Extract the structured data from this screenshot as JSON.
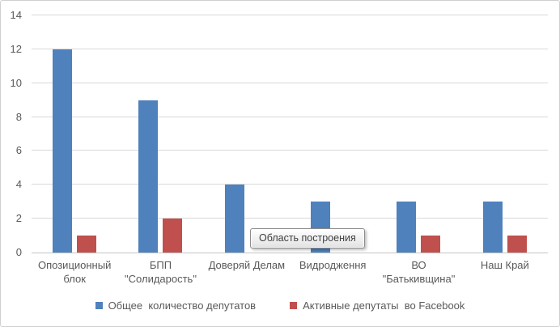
{
  "tooltip": {
    "text": "Область построения"
  },
  "colors": {
    "series_blue": "#4F81BD",
    "series_red": "#C0504D",
    "gridline": "#D9D9D9",
    "axis_line": "#C6C6C6",
    "text": "#595959",
    "chart_border": "#CFCFCF"
  },
  "chart_data": {
    "type": "bar",
    "title": "",
    "xlabel": "",
    "ylabel": "",
    "categories": [
      "Опозиционный блок",
      "БПП \"Солидарость\"",
      "Доверяй Делам",
      "Видродження",
      "ВО \"Батькивщина\"",
      "Наш Край"
    ],
    "category_label_lines": [
      [
        "Опозиционный",
        "блок"
      ],
      [
        "БПП",
        "\"Солидарость\""
      ],
      [
        "Доверяй Делам"
      ],
      [
        "Видродження"
      ],
      [
        "ВО",
        "\"Батькивщина\""
      ],
      [
        "Наш Край"
      ]
    ],
    "series": [
      {
        "key": "total-deputies",
        "name": "Общее  количество депутатов",
        "color": "#4F81BD",
        "values": [
          12,
          9,
          4,
          3,
          3,
          3
        ]
      },
      {
        "key": "facebook-active",
        "name": "Активные депутаты  во Facebook",
        "color": "#C0504D",
        "values": [
          1,
          2,
          0,
          0,
          1,
          1
        ]
      }
    ],
    "ylim": [
      0,
      14
    ],
    "yticks": [
      0,
      2,
      4,
      6,
      8,
      10,
      12,
      14
    ],
    "grid": true,
    "legend_position": "bottom"
  }
}
